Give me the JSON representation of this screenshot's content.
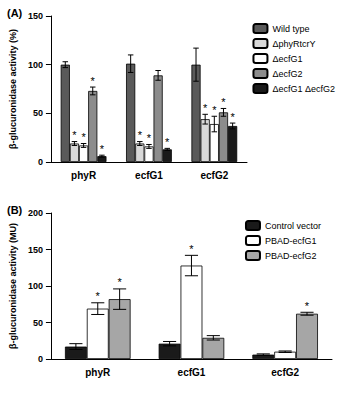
{
  "chart_data": [
    {
      "type": "bar",
      "title": "(A)",
      "y_label": "β-glucuronidase activity (%)",
      "categories": [
        "phyR",
        "ecfG1",
        "ecfG2"
      ],
      "series": [
        {
          "name": "Wild type",
          "color": "#5a5a5a",
          "values": [
            100,
            101,
            100
          ],
          "errors": [
            3,
            9,
            17
          ]
        },
        {
          "name": "ΔphyRtcrY",
          "color": "#d9d9d9",
          "values": [
            19,
            19,
            44
          ],
          "errors": [
            2,
            2,
            5
          ],
          "annotations": [
            "*",
            "*",
            "*"
          ]
        },
        {
          "name": "ΔecfG1",
          "color": "#ffffff",
          "values": [
            17,
            16,
            39
          ],
          "errors": [
            2,
            2,
            8
          ],
          "annotations": [
            "*",
            "*",
            "*"
          ]
        },
        {
          "name": "ΔecfG2",
          "color": "#8c8c8c",
          "values": [
            73,
            89,
            51
          ],
          "errors": [
            4,
            5,
            4
          ],
          "annotations": [
            "*",
            null,
            "*"
          ]
        },
        {
          "name": "ΔecfG1 ΔecfG2",
          "color": "#1a1a1a",
          "values": [
            6,
            13,
            37
          ],
          "errors": [
            1,
            1,
            3
          ],
          "annotations": [
            "*",
            "*",
            "*"
          ]
        }
      ],
      "ylim": [
        0,
        150
      ],
      "yticks": [
        0,
        50,
        100,
        150
      ],
      "grid": false,
      "legend": "right"
    },
    {
      "type": "bar",
      "title": "(B)",
      "y_label": "β-glucuronidase activity (MU)",
      "categories": [
        "phyR",
        "ecfG1",
        "ecfG2"
      ],
      "series": [
        {
          "name": "Control vector",
          "color": "#1a1a1a",
          "values": [
            17,
            21,
            6
          ],
          "errors": [
            4,
            3,
            1
          ]
        },
        {
          "name": "PBAD-ecfG1",
          "color": "#ffffff",
          "values": [
            69,
            128,
            10
          ],
          "errors": [
            8,
            14,
            1
          ],
          "annotations": [
            "*",
            "*",
            null
          ]
        },
        {
          "name": "PBAD-ecfG2",
          "color": "#a6a6a6",
          "values": [
            82,
            29,
            62
          ],
          "errors": [
            14,
            3,
            2
          ],
          "annotations": [
            "*",
            null,
            "*"
          ]
        }
      ],
      "ylim": [
        0,
        200
      ],
      "yticks": [
        0,
        50,
        100,
        150,
        200
      ],
      "grid": false,
      "legend": "upper right"
    }
  ]
}
